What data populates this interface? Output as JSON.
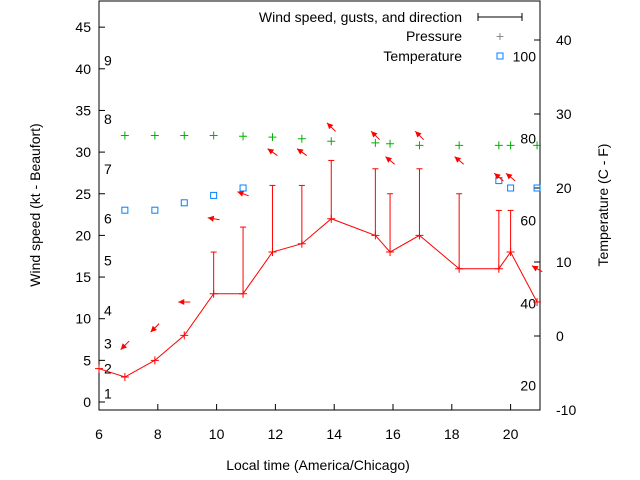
{
  "chart_data": {
    "type": "line",
    "xlabel": "Local time (America/Chicago)",
    "ylabel": "Wind speed (kt - Beaufort)",
    "y2label": "Temperature (C - F)",
    "xlim": [
      6,
      21
    ],
    "ylim": [
      0,
      48
    ],
    "y2lim": [
      -10,
      45
    ],
    "xticks": [
      6,
      8,
      10,
      12,
      14,
      16,
      18,
      20
    ],
    "yticks": [
      0,
      5,
      10,
      15,
      20,
      25,
      30,
      35,
      40,
      45
    ],
    "y2ticks": [
      -10,
      0,
      10,
      20,
      30,
      40
    ],
    "beaufort_labels": [
      {
        "label": "1",
        "kt": 1
      },
      {
        "label": "2",
        "kt": 4
      },
      {
        "label": "3",
        "kt": 7
      },
      {
        "label": "4",
        "kt": 11
      },
      {
        "label": "5",
        "kt": 17
      },
      {
        "label": "6",
        "kt": 22
      },
      {
        "label": "7",
        "kt": 28
      },
      {
        "label": "8",
        "kt": 34
      },
      {
        "label": "9",
        "kt": 41
      }
    ],
    "fahrenheit_labels": [
      {
        "label": "20",
        "c": -6.7
      },
      {
        "label": "40",
        "c": 4.4
      },
      {
        "label": "60",
        "c": 15.6
      },
      {
        "label": "80",
        "c": 26.7
      },
      {
        "label": "100",
        "c": 37.8
      }
    ],
    "legend": {
      "position": "top-right",
      "entries": [
        "Wind speed, gusts, and direction",
        "Pressure",
        "Temperature"
      ]
    },
    "series": [
      {
        "name": "Wind speed",
        "color": "#ff0000",
        "x": [
          6,
          6.88,
          7.9,
          8.9,
          9.9,
          10.9,
          11.9,
          12.9,
          13.9,
          15.4,
          15.9,
          16.9,
          18.25,
          19.6,
          20,
          20.9
        ],
        "values": [
          4,
          3,
          5,
          8,
          13,
          13,
          18,
          19,
          22,
          20,
          18,
          20,
          16,
          16,
          18,
          12
        ]
      },
      {
        "name": "Gusts",
        "color": "#ff0000",
        "x": [
          9.9,
          10.9,
          11.9,
          12.9,
          13.9,
          15.4,
          15.9,
          16.9,
          18.25,
          19.6,
          20
        ],
        "values": [
          18,
          21,
          26,
          26,
          29,
          28,
          25,
          28,
          25,
          23,
          23
        ]
      },
      {
        "name": "Direction",
        "color": "#ff0000",
        "x": [
          6.88,
          7.9,
          8.9,
          9.9,
          10.9,
          11.9,
          12.9,
          13.9,
          15.4,
          15.9,
          16.9,
          18.25,
          19.6,
          20,
          20.9
        ],
        "y": [
          6.8,
          8.9,
          12,
          22,
          25,
          30,
          30,
          33,
          32,
          29,
          32,
          29,
          27,
          27,
          16
        ],
        "heading_deg": [
          225,
          225,
          180,
          170,
          160,
          145,
          145,
          135,
          135,
          140,
          135,
          140,
          140,
          140,
          150
        ]
      },
      {
        "name": "Pressure",
        "color": "#00b000",
        "x": [
          6.88,
          7.9,
          8.9,
          9.9,
          10.9,
          11.9,
          12.9,
          13.9,
          15.4,
          15.9,
          16.9,
          18.25,
          19.6,
          20,
          20.9
        ],
        "values": [
          32,
          32,
          32,
          32,
          31.9,
          31.8,
          31.6,
          31.3,
          31.1,
          31.0,
          30.8,
          30.8,
          30.8,
          30.8,
          30.8
        ]
      },
      {
        "name": "Temperature",
        "color": "#0080ff",
        "axis": "y2",
        "x": [
          6.88,
          7.9,
          8.9,
          9.9,
          10.9,
          19.6,
          20,
          20.9
        ],
        "values": [
          17,
          17,
          18,
          19,
          20,
          21,
          20,
          20
        ]
      }
    ]
  }
}
